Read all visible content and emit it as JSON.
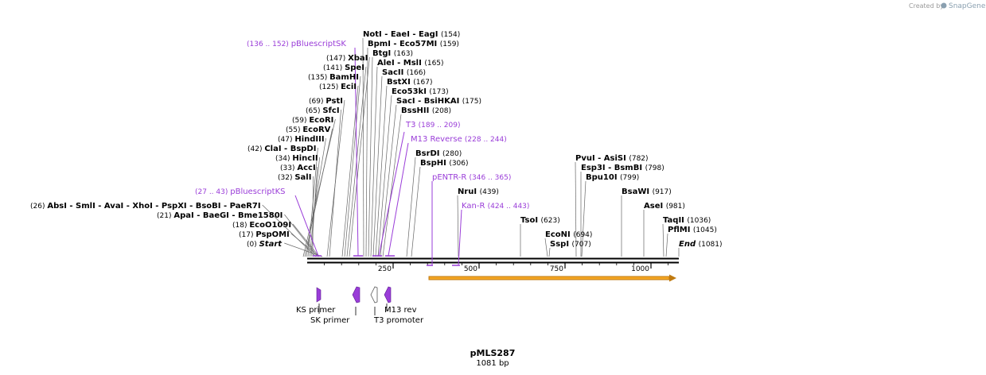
{
  "credit": {
    "text": "Created by",
    "brand": "SnapGene"
  },
  "plasmid": {
    "name": "pMLS287",
    "length_label": "1081 bp"
  },
  "sites_left": [
    {
      "pos": "(0)",
      "names": [
        "Start"
      ],
      "italic": true
    },
    {
      "pos": "(17)",
      "names": [
        "PspOMI"
      ]
    },
    {
      "pos": "(18)",
      "names": [
        "EcoO109I"
      ]
    },
    {
      "pos": "(21)",
      "names": [
        "ApaI",
        "BaeGI",
        "Bme1580I"
      ]
    },
    {
      "pos": "(26)",
      "names": [
        "AbsI",
        "SmlI",
        "AvaI",
        "XhoI",
        "PspXI",
        "BsoBI",
        "PaeR7I"
      ]
    },
    {
      "pos": "(32)",
      "names": [
        "SalI"
      ]
    },
    {
      "pos": "(33)",
      "names": [
        "AccI"
      ]
    },
    {
      "pos": "(34)",
      "names": [
        "HincII"
      ]
    },
    {
      "pos": "(42)",
      "names": [
        "ClaI",
        "BspDI"
      ]
    },
    {
      "pos": "(47)",
      "names": [
        "HindIII"
      ]
    },
    {
      "pos": "(55)",
      "names": [
        "EcoRV"
      ]
    },
    {
      "pos": "(59)",
      "names": [
        "EcoRI"
      ]
    },
    {
      "pos": "(65)",
      "names": [
        "SfcI"
      ]
    },
    {
      "pos": "(69)",
      "names": [
        "PstI"
      ]
    },
    {
      "pos": "(125)",
      "names": [
        "EciI"
      ]
    },
    {
      "pos": "(135)",
      "names": [
        "BamHI"
      ]
    },
    {
      "pos": "(141)",
      "names": [
        "SpeI"
      ]
    },
    {
      "pos": "(147)",
      "names": [
        "XbaI"
      ]
    }
  ],
  "sites_right": [
    {
      "pos": "(154)",
      "names": [
        "NotI",
        "EaeI",
        "EagI"
      ]
    },
    {
      "pos": "(159)",
      "names": [
        "BpmI",
        "Eco57MI"
      ]
    },
    {
      "pos": "(163)",
      "names": [
        "BtgI"
      ]
    },
    {
      "pos": "(165)",
      "names": [
        "AleI",
        "MslI"
      ]
    },
    {
      "pos": "(166)",
      "names": [
        "SacII"
      ]
    },
    {
      "pos": "(167)",
      "names": [
        "BstXI"
      ]
    },
    {
      "pos": "(173)",
      "names": [
        "Eco53kI"
      ]
    },
    {
      "pos": "(175)",
      "names": [
        "SacI",
        "BsiHKAI"
      ]
    },
    {
      "pos": "(208)",
      "names": [
        "BssHII"
      ]
    },
    {
      "pos": "(280)",
      "names": [
        "BsrDI"
      ]
    },
    {
      "pos": "(306)",
      "names": [
        "BspHI"
      ]
    },
    {
      "pos": "(439)",
      "names": [
        "NruI"
      ]
    },
    {
      "pos": "(623)",
      "names": [
        "TsoI"
      ]
    },
    {
      "pos": "(694)",
      "names": [
        "EcoNI"
      ]
    },
    {
      "pos": "(707)",
      "names": [
        "SspI"
      ]
    },
    {
      "pos": "(782)",
      "names": [
        "PvuI",
        "AsiSI"
      ]
    },
    {
      "pos": "(798)",
      "names": [
        "Esp3I",
        "BsmBI"
      ]
    },
    {
      "pos": "(799)",
      "names": [
        "Bpu10I"
      ]
    },
    {
      "pos": "(917)",
      "names": [
        "BsaWI"
      ]
    },
    {
      "pos": "(981)",
      "names": [
        "AseI"
      ]
    },
    {
      "pos": "(1036)",
      "names": [
        "TaqII"
      ]
    },
    {
      "pos": "(1045)",
      "names": [
        "PflMI"
      ]
    },
    {
      "pos": "(1081)",
      "names": [
        "End"
      ],
      "italic": true
    }
  ],
  "primers": [
    {
      "name": "pBluescriptSK",
      "range": "(136 .. 152)"
    },
    {
      "name": "pBluescriptKS",
      "range": "(27 .. 43)"
    },
    {
      "name": "T3",
      "range": "(189 .. 209)"
    },
    {
      "name": "M13 Reverse",
      "range": "(228 .. 244)"
    },
    {
      "name": "pENTR-R",
      "range": "(346 .. 365)"
    },
    {
      "name": "Kan-R",
      "range": "(424 .. 443)"
    }
  ],
  "ruler": {
    "ticks": [
      "250",
      "500",
      "750",
      "1000"
    ]
  },
  "features": [
    {
      "name": "KS primer"
    },
    {
      "name": "SK primer"
    },
    {
      "name": "M13 rev"
    },
    {
      "name": "T3 promoter"
    }
  ],
  "colors": {
    "primer": "#9a3dd8",
    "orf_fill": "#f5a623",
    "orf_stroke": "#c07a10",
    "backbone": "#000000"
  }
}
